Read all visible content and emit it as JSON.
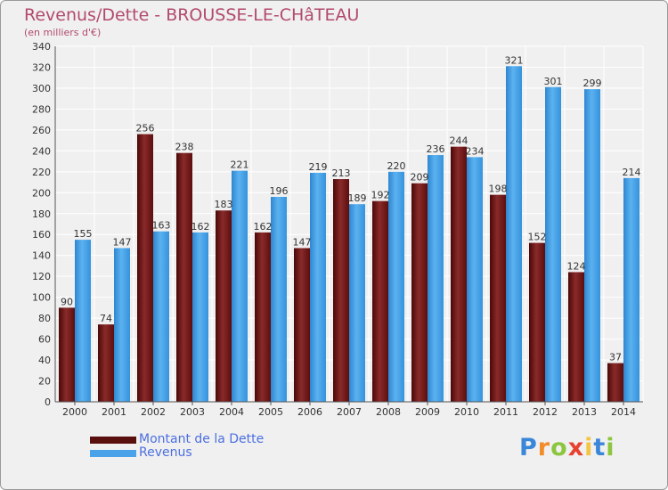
{
  "title": "Revenus/Dette - BROUSSE-LE-CHâTEAU",
  "subtitle": "(en milliers d'€)",
  "logo": {
    "letters": [
      "P",
      "r",
      "o",
      "x",
      "i",
      "t",
      "i"
    ],
    "colors": [
      "#3a86d8",
      "#f28c28",
      "#8cc63f",
      "#e8402e",
      "#f4c542",
      "#3a86d8",
      "#8cc63f"
    ]
  },
  "colors": {
    "debt": "#7a1c1c",
    "revenue": "#4aa3e8",
    "debt_legend": "#5a0f0f",
    "revenue_legend": "#4aa3e8"
  },
  "chart_data": {
    "type": "bar",
    "title": "Revenus/Dette - BROUSSE-LE-CHâTEAU",
    "subtitle": "(en milliers d'€)",
    "categories": [
      "2000",
      "2001",
      "2002",
      "2003",
      "2004",
      "2005",
      "2006",
      "2007",
      "2008",
      "2009",
      "2010",
      "2011",
      "2012",
      "2013",
      "2014"
    ],
    "series": [
      {
        "name": "Montant de la Dette",
        "values": [
          90,
          74,
          256,
          238,
          183,
          162,
          147,
          213,
          192,
          209,
          244,
          198,
          152,
          124,
          37
        ]
      },
      {
        "name": "Revenus",
        "values": [
          155,
          147,
          163,
          162,
          221,
          196,
          219,
          189,
          220,
          236,
          234,
          321,
          301,
          299,
          214
        ]
      }
    ],
    "yticks": [
      0,
      20,
      40,
      60,
      80,
      100,
      120,
      140,
      160,
      180,
      200,
      220,
      240,
      260,
      280,
      300,
      320,
      340
    ],
    "ylim": [
      0,
      340
    ],
    "grid": true,
    "legend_position": "bottom-left"
  }
}
